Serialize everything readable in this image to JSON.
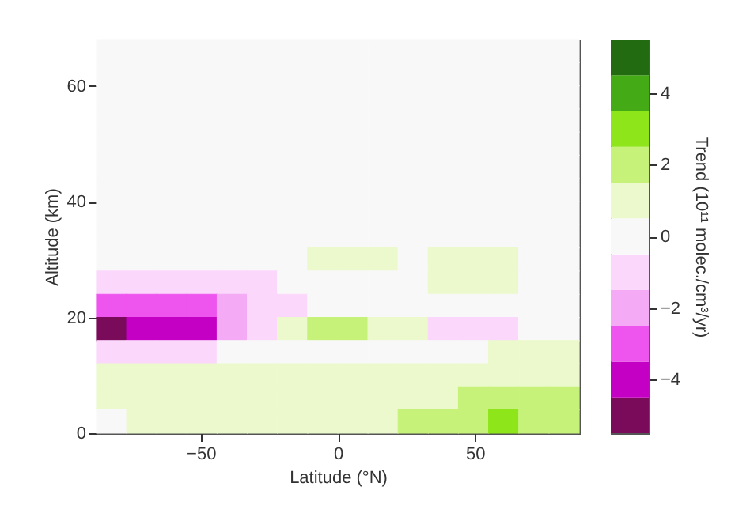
{
  "chart_data": {
    "type": "heatmap",
    "xlabel": "Latitude (°N)",
    "ylabel": "Altitude (km)",
    "clabel": "Trend (10¹¹ molec./cm³/yr)",
    "x": [
      -82.5,
      -71.5,
      -60.5,
      -49.5,
      -38.5,
      -27.5,
      -16.5,
      -5.5,
      5.5,
      16.5,
      27.5,
      38.5,
      49.5,
      60.5,
      71.5,
      82.5
    ],
    "y": [
      66,
      62,
      58,
      54,
      50,
      46,
      42,
      38,
      34,
      30,
      26,
      22,
      18,
      14,
      10,
      6,
      2
    ],
    "xlim": [
      -88,
      88
    ],
    "xticks": [
      -50,
      0,
      50
    ],
    "ylim": [
      0,
      68
    ],
    "yticks": [
      0,
      20,
      40,
      60
    ],
    "clim": [
      -5.5,
      5.5
    ],
    "cticks": [
      -4,
      -2,
      0,
      2,
      4
    ],
    "cells": [
      [
        0,
        0,
        0,
        0,
        0,
        0,
        0,
        0,
        0,
        0,
        0,
        0,
        0,
        0,
        0,
        0
      ],
      [
        0,
        0,
        0,
        0,
        0,
        0,
        0,
        0,
        0,
        0,
        0,
        0,
        0,
        0,
        0,
        0
      ],
      [
        0,
        0,
        0,
        0,
        0,
        0,
        0,
        0,
        0,
        0,
        0,
        0,
        0,
        0,
        0,
        0
      ],
      [
        0,
        0,
        0,
        0,
        0,
        0,
        0,
        0,
        0,
        0,
        0,
        0,
        0,
        0,
        0,
        0
      ],
      [
        0,
        0,
        0,
        0,
        0,
        0,
        0,
        0,
        0,
        0,
        0,
        0,
        0,
        0,
        0,
        0
      ],
      [
        0,
        0,
        0,
        0,
        0,
        0,
        0,
        0,
        0,
        0,
        0,
        0,
        0,
        0,
        0,
        0
      ],
      [
        0,
        0,
        0,
        0,
        0,
        0,
        0,
        0,
        0,
        0,
        0,
        0,
        0,
        0,
        0,
        0
      ],
      [
        0,
        0,
        0,
        0,
        0,
        0,
        0,
        0,
        0,
        0,
        0,
        0,
        0,
        0,
        0,
        0
      ],
      [
        0,
        0,
        0,
        0,
        0,
        0,
        0,
        0,
        0,
        0,
        0,
        0,
        0,
        0,
        0,
        0
      ],
      [
        0,
        0,
        0,
        0,
        0,
        0,
        0,
        1,
        1,
        1,
        0,
        1,
        1,
        1,
        0,
        0
      ],
      [
        -1,
        -1,
        -1,
        -1,
        -1,
        -1,
        0,
        0,
        0,
        0,
        0,
        1,
        1,
        1,
        0,
        0
      ],
      [
        -3,
        -3,
        -3,
        -3,
        -2,
        -1,
        -1,
        0,
        0,
        0,
        0,
        0,
        0,
        0,
        0,
        0
      ],
      [
        -5,
        -4,
        -4,
        -4,
        -2,
        -1,
        1,
        2,
        2,
        1,
        1,
        -1,
        -1,
        -1,
        0,
        0
      ],
      [
        -1,
        -1,
        -1,
        -1,
        0,
        0,
        0,
        0,
        0,
        0,
        0,
        0,
        0,
        1,
        1,
        1
      ],
      [
        1,
        1,
        1,
        1,
        1,
        1,
        1,
        1,
        1,
        1,
        1,
        1,
        1,
        1,
        1,
        1
      ],
      [
        1,
        1,
        1,
        1,
        1,
        1,
        1,
        1,
        1,
        1,
        1,
        1,
        2,
        2,
        2,
        2
      ],
      [
        0,
        1,
        1,
        1,
        1,
        1,
        1,
        1,
        1,
        1,
        2,
        2,
        2,
        3,
        2,
        2
      ]
    ]
  }
}
